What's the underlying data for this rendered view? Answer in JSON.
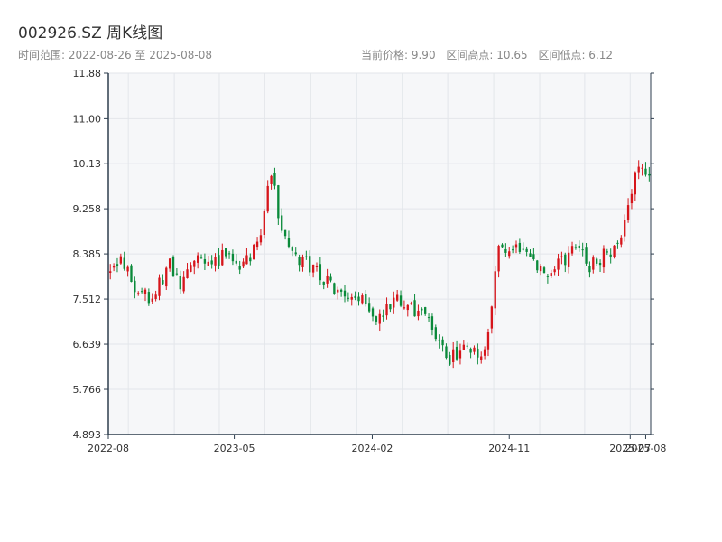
{
  "header": {
    "title": "002926.SZ 周K线图",
    "range_label": "时间范围: 2022-08-26 至 2025-08-08",
    "current_price": "当前价格: 9.90",
    "range_high": "区间高点: 10.65",
    "range_low": "区间低点: 6.12"
  },
  "colors": {
    "up": "#d6151b",
    "down": "#0a8a3a",
    "plot_bg": "#f6f7f9",
    "grid": "#e3e6ea",
    "axis": "#2e3e4e"
  },
  "chart_data": {
    "type": "candlestick",
    "title": "002926.SZ 周K线图",
    "y_ticks": [
      "4.893",
      "5.766",
      "6.639",
      "7.512",
      "8.385",
      "9.258",
      "10.13",
      "11.00",
      "11.88"
    ],
    "ylim": [
      4.893,
      11.88
    ],
    "x_ticks": [
      "2022-08",
      "2023-05",
      "2024-02",
      "2024-11",
      "2025-07",
      "2025-08"
    ],
    "x_range": [
      "2022-08-22",
      "2025-08-11"
    ],
    "grid": true,
    "close_start": 8.05,
    "close_end": 9.9,
    "close_min": 6.12,
    "close_max": 10.65,
    "waypoints": [
      [
        "2022-08-26",
        8.05
      ],
      [
        "2022-09-16",
        8.3
      ],
      [
        "2022-10-21",
        7.6
      ],
      [
        "2022-11-18",
        7.55
      ],
      [
        "2022-12-23",
        8.2
      ],
      [
        "2023-01-13",
        7.7
      ],
      [
        "2023-02-10",
        8.3
      ],
      [
        "2023-03-17",
        8.15
      ],
      [
        "2023-04-14",
        8.4
      ],
      [
        "2023-05-12",
        8.2
      ],
      [
        "2023-06-16",
        8.5
      ],
      [
        "2023-06-30",
        9.2
      ],
      [
        "2023-07-14",
        10.0
      ],
      [
        "2023-08-04",
        8.8
      ],
      [
        "2023-09-08",
        8.3
      ],
      [
        "2023-10-27",
        7.9
      ],
      [
        "2023-12-15",
        7.4
      ],
      [
        "2024-01-12",
        7.6
      ],
      [
        "2024-02-09",
        7.1
      ],
      [
        "2024-03-15",
        7.5
      ],
      [
        "2024-04-19",
        7.3
      ],
      [
        "2024-05-24",
        7.2
      ],
      [
        "2024-06-28",
        6.3
      ],
      [
        "2024-08-02",
        6.6
      ],
      [
        "2024-09-13",
        6.45
      ],
      [
        "2024-10-11",
        8.5
      ],
      [
        "2024-11-15",
        8.6
      ],
      [
        "2024-12-20",
        8.3
      ],
      [
        "2025-01-17",
        7.9
      ],
      [
        "2025-02-14",
        8.25
      ],
      [
        "2025-03-21",
        8.5
      ],
      [
        "2025-04-11",
        8.15
      ],
      [
        "2025-05-16",
        8.4
      ],
      [
        "2025-06-13",
        8.6
      ],
      [
        "2025-06-27",
        9.4
      ],
      [
        "2025-07-18",
        10.2
      ],
      [
        "2025-08-08",
        9.9
      ]
    ]
  }
}
